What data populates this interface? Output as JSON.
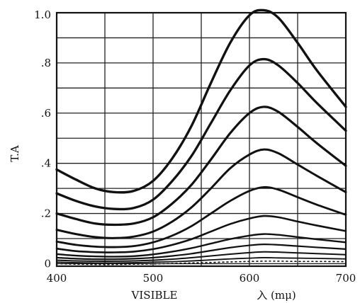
{
  "chart_data": {
    "type": "line",
    "title": "",
    "xlabel_left": "VISIBLE",
    "xlabel_right": "入 (mμ)",
    "ylabel": "T.A",
    "xlim": [
      400,
      700
    ],
    "ylim": [
      -0.01,
      1.0
    ],
    "grid": true,
    "x_ticks": [
      400,
      500,
      600,
      700
    ],
    "x_tick_labels": [
      "400",
      "500",
      "600",
      "700"
    ],
    "y_ticks": [
      0,
      0.2,
      0.4,
      0.6,
      0.8,
      1.0
    ],
    "y_tick_labels": [
      "0",
      ".2",
      ".4",
      ".6",
      ".8",
      "1.0"
    ],
    "x": [
      400,
      420,
      440,
      460,
      480,
      500,
      520,
      540,
      560,
      580,
      600,
      615,
      630,
      650,
      670,
      700
    ],
    "series": [
      {
        "values": [
          0.375,
          0.335,
          0.3,
          0.285,
          0.29,
          0.33,
          0.42,
          0.55,
          0.72,
          0.88,
          0.99,
          1.01,
          0.98,
          0.88,
          0.77,
          0.625
        ]
      },
      {
        "values": [
          0.28,
          0.25,
          0.228,
          0.218,
          0.222,
          0.255,
          0.33,
          0.43,
          0.56,
          0.69,
          0.79,
          0.815,
          0.79,
          0.72,
          0.64,
          0.53
        ]
      },
      {
        "values": [
          0.2,
          0.178,
          0.16,
          0.155,
          0.16,
          0.185,
          0.24,
          0.315,
          0.415,
          0.52,
          0.6,
          0.625,
          0.605,
          0.545,
          0.48,
          0.39
        ]
      },
      {
        "values": [
          0.135,
          0.118,
          0.106,
          0.102,
          0.108,
          0.128,
          0.168,
          0.225,
          0.3,
          0.38,
          0.435,
          0.455,
          0.44,
          0.395,
          0.35,
          0.285
        ]
      },
      {
        "values": [
          0.088,
          0.075,
          0.068,
          0.066,
          0.07,
          0.085,
          0.112,
          0.15,
          0.2,
          0.25,
          0.29,
          0.305,
          0.295,
          0.265,
          0.235,
          0.195
        ]
      },
      {
        "values": [
          0.06,
          0.05,
          0.046,
          0.045,
          0.048,
          0.058,
          0.075,
          0.098,
          0.128,
          0.158,
          0.18,
          0.19,
          0.185,
          0.168,
          0.152,
          0.13
        ]
      },
      {
        "values": [
          0.038,
          0.032,
          0.029,
          0.028,
          0.03,
          0.037,
          0.048,
          0.062,
          0.08,
          0.098,
          0.112,
          0.118,
          0.115,
          0.106,
          0.097,
          0.085
        ]
      },
      {
        "values": [
          0.024,
          0.02,
          0.018,
          0.018,
          0.02,
          0.024,
          0.031,
          0.04,
          0.052,
          0.064,
          0.073,
          0.077,
          0.075,
          0.07,
          0.065,
          0.058
        ]
      },
      {
        "values": [
          0.014,
          0.011,
          0.01,
          0.01,
          0.011,
          0.014,
          0.018,
          0.024,
          0.031,
          0.038,
          0.044,
          0.047,
          0.046,
          0.043,
          0.04,
          0.036
        ]
      },
      {
        "values": [
          0.006,
          0.004,
          0.003,
          0.003,
          0.004,
          0.006,
          0.008,
          0.011,
          0.015,
          0.019,
          0.022,
          0.024,
          0.023,
          0.022,
          0.021,
          0.019
        ]
      },
      {
        "values": [
          0.0,
          -0.002,
          -0.003,
          -0.003,
          -0.002,
          -0.001,
          0.001,
          0.003,
          0.005,
          0.007,
          0.009,
          0.01,
          0.01,
          0.009,
          0.009,
          0.008
        ]
      }
    ]
  }
}
